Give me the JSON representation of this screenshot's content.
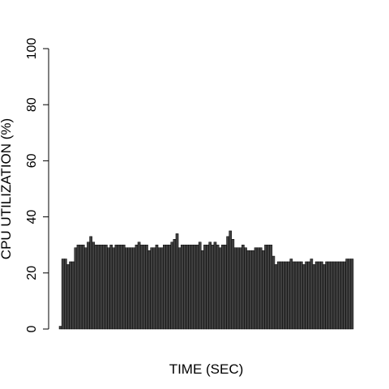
{
  "chart_data": {
    "type": "bar",
    "xlabel": "TIME (SEC)",
    "ylabel": "CPU UTILIZATION (%)",
    "ylim": [
      0,
      100
    ],
    "yticks": [
      0,
      20,
      40,
      60,
      80,
      100
    ],
    "grid": false,
    "bar_color": "#404040",
    "values": [
      1,
      25,
      25,
      23,
      24,
      24,
      29,
      30,
      30,
      30,
      29,
      31,
      33,
      31,
      30,
      30,
      30,
      30,
      30,
      29,
      30,
      29,
      30,
      30,
      30,
      30,
      29,
      29,
      29,
      29,
      30,
      31,
      30,
      30,
      30,
      28,
      29,
      29,
      30,
      29,
      29,
      30,
      30,
      30,
      31,
      32,
      34,
      29,
      30,
      30,
      30,
      30,
      30,
      30,
      30,
      31,
      28,
      30,
      30,
      31,
      30,
      31,
      30,
      29,
      30,
      30,
      33,
      35,
      32,
      29,
      29,
      29,
      30,
      29,
      28,
      28,
      28,
      29,
      29,
      29,
      28,
      30,
      30,
      30,
      26,
      23,
      24,
      24,
      24,
      24,
      24,
      25,
      24,
      24,
      24,
      24,
      23,
      24,
      24,
      25,
      23,
      24,
      24,
      24,
      23,
      24,
      24,
      24,
      24,
      24,
      24,
      24,
      24,
      25,
      25,
      25
    ]
  }
}
